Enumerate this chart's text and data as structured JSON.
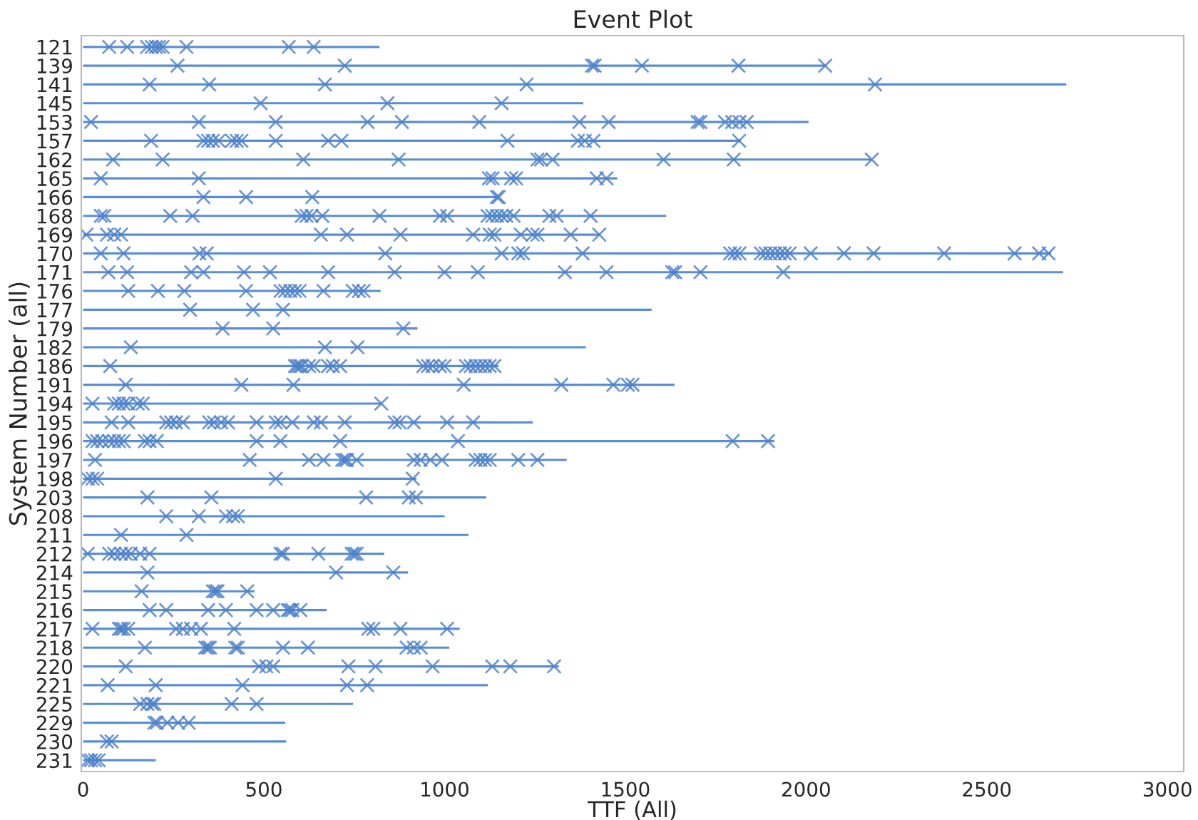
{
  "chart_data": {
    "type": "bar",
    "orientation": "horizontal",
    "title": "Event Plot",
    "xlabel": "TTF (All)",
    "ylabel": "System Number (all)",
    "categories": [
      "121",
      "139",
      "141",
      "145",
      "153",
      "157",
      "162",
      "165",
      "166",
      "168",
      "169",
      "170",
      "171",
      "176",
      "177",
      "179",
      "182",
      "186",
      "191",
      "194",
      "195",
      "196",
      "197",
      "198",
      "203",
      "208",
      "211",
      "212",
      "214",
      "215",
      "216",
      "217",
      "218",
      "220",
      "221",
      "225",
      "229",
      "230",
      "231"
    ],
    "xlim": [
      -5,
      3045
    ],
    "xticks": [
      0,
      500,
      1000,
      1500,
      2000,
      2500,
      3000
    ],
    "grid": false,
    "legend": false,
    "marker": "cross",
    "series": [
      {
        "color": "#5a8ed0",
        "values": [
          820,
          2057,
          2720,
          1384,
          2007,
          1819,
          2182,
          1478,
          1150,
          1613,
          1430,
          2678,
          2711,
          823,
          1573,
          925,
          1391,
          1149,
          1636,
          825,
          1244,
          1912,
          1338,
          922,
          1115,
          1000,
          1066,
          833,
          899,
          474,
          674,
          1042,
          1013,
          1316,
          1120,
          747,
          559,
          562,
          201
        ]
      },
      {
        "type": "scatter",
        "color": "#4a7ec8",
        "x": [
          "121",
          "121",
          "121",
          "121",
          "121",
          "121",
          "121",
          "121",
          "121",
          "121"
        ],
        "values": [
          72,
          122,
          177,
          190,
          201,
          210,
          220,
          286,
          569,
          638
        ]
      },
      {
        "type": "scatter",
        "color": "#4a7ec8",
        "x": [
          "139",
          "139",
          "139",
          "139",
          "139",
          "139",
          "139"
        ],
        "values": [
          261,
          724,
          1408,
          1415,
          1546,
          1813,
          2053
        ]
      },
      {
        "type": "scatter",
        "color": "#4a7ec8",
        "x": [
          "141",
          "141",
          "141",
          "141",
          "141"
        ],
        "values": [
          184,
          349,
          669,
          1227,
          2191
        ]
      },
      {
        "type": "scatter",
        "color": "#4a7ec8",
        "x": [
          "145",
          "145",
          "145"
        ],
        "values": [
          491,
          842,
          1158
        ]
      },
      {
        "type": "scatter",
        "color": "#4a7ec8",
        "x": [
          "153",
          "153",
          "153",
          "153",
          "153",
          "153",
          "153",
          "153",
          "153",
          "153",
          "153",
          "153",
          "153",
          "153"
        ],
        "values": [
          22,
          320,
          533,
          787,
          882,
          1096,
          1373,
          1454,
          1700,
          1708,
          1776,
          1796,
          1816,
          1836
        ]
      },
      {
        "type": "scatter",
        "color": "#4a7ec8",
        "x": [
          "157",
          "157",
          "157",
          "157",
          "157",
          "157",
          "157",
          "157",
          "157",
          "157",
          "157",
          "157",
          "157",
          "157",
          "157",
          "157"
        ],
        "values": [
          188,
          333,
          346,
          359,
          375,
          412,
          425,
          438,
          533,
          678,
          715,
          1174,
          1369,
          1388,
          1412,
          1815
        ]
      },
      {
        "type": "scatter",
        "color": "#4a7ec8",
        "x": [
          "162",
          "162",
          "162",
          "162",
          "162",
          "162",
          "162",
          "162",
          "162",
          "162"
        ],
        "values": [
          83,
          220,
          609,
          873,
          1257,
          1267,
          1299,
          1606,
          1800,
          2182
        ]
      },
      {
        "type": "scatter",
        "color": "#4a7ec8",
        "x": [
          "165",
          "165",
          "165",
          "165",
          "165",
          "165",
          "165",
          "165"
        ],
        "values": [
          49,
          320,
          1123,
          1133,
          1184,
          1198,
          1421,
          1448
        ]
      },
      {
        "type": "scatter",
        "color": "#4a7ec8",
        "x": [
          "166",
          "166",
          "166",
          "166",
          "166"
        ],
        "values": [
          333,
          451,
          634,
          1145,
          1150
        ]
      },
      {
        "type": "scatter",
        "color": "#4a7ec8",
        "x": [
          "168",
          "168",
          "168",
          "168",
          "168",
          "168",
          "168",
          "168",
          "168",
          "168",
          "168",
          "168",
          "168",
          "168",
          "168",
          "168",
          "168",
          "168",
          "168",
          "168"
        ],
        "values": [
          49,
          59,
          241,
          303,
          605,
          618,
          632,
          662,
          820,
          987,
          1007,
          1119,
          1132,
          1145,
          1158,
          1171,
          1191,
          1290,
          1310,
          1404
        ]
      },
      {
        "type": "scatter",
        "color": "#4a7ec8",
        "x": [
          "169",
          "169",
          "169",
          "169",
          "169",
          "169",
          "169",
          "169",
          "169",
          "169",
          "169",
          "169",
          "169",
          "169",
          "169"
        ],
        "values": [
          9,
          66,
          86,
          105,
          658,
          730,
          878,
          1079,
          1125,
          1138,
          1211,
          1244,
          1257,
          1349,
          1428
        ]
      },
      {
        "type": "scatter",
        "color": "#4a7ec8",
        "x": [
          "170",
          "170",
          "170",
          "170",
          "170",
          "170",
          "170",
          "170",
          "170",
          "170",
          "170",
          "170",
          "170",
          "170",
          "170",
          "170",
          "170",
          "170",
          "170",
          "170",
          "170",
          "170",
          "170",
          "170",
          "170",
          "170"
        ],
        "values": [
          49,
          112,
          322,
          342,
          836,
          1158,
          1204,
          1217,
          1382,
          1790,
          1803,
          1816,
          1875,
          1888,
          1901,
          1914,
          1928,
          1941,
          1955,
          2013,
          2105,
          2187,
          2382,
          2577,
          2645,
          2671
        ]
      },
      {
        "type": "scatter",
        "color": "#4a7ec8",
        "x": [
          "171",
          "171",
          "171",
          "171",
          "171",
          "171",
          "171",
          "171",
          "171",
          "171",
          "171",
          "171",
          "171",
          "171",
          "171",
          "171"
        ],
        "values": [
          70,
          122,
          299,
          333,
          445,
          517,
          678,
          862,
          1000,
          1092,
          1333,
          1448,
          1630,
          1638,
          1708,
          1937
        ]
      },
      {
        "type": "scatter",
        "color": "#4a7ec8",
        "x": [
          "176",
          "176",
          "176",
          "176",
          "176",
          "176",
          "176",
          "176",
          "176",
          "176",
          "176",
          "176",
          "176"
        ],
        "values": [
          125,
          207,
          280,
          451,
          546,
          559,
          573,
          586,
          599,
          665,
          746,
          763,
          776
        ]
      },
      {
        "type": "scatter",
        "color": "#4a7ec8",
        "x": [
          "177",
          "177",
          "177"
        ],
        "values": [
          296,
          470,
          553
        ]
      },
      {
        "type": "scatter",
        "color": "#4a7ec8",
        "x": [
          "179",
          "179",
          "179"
        ],
        "values": [
          386,
          526,
          886
        ]
      },
      {
        "type": "scatter",
        "color": "#4a7ec8",
        "x": [
          "182",
          "182",
          "182"
        ],
        "values": [
          132,
          669,
          759
        ]
      },
      {
        "type": "scatter",
        "color": "#4a7ec8",
        "x": [
          "186",
          "186",
          "186",
          "186",
          "186",
          "186",
          "186",
          "186",
          "186",
          "186",
          "186",
          "186",
          "186",
          "186",
          "186",
          "186",
          "186",
          "186",
          "186",
          "186",
          "186",
          "186"
        ],
        "values": [
          75,
          586,
          592,
          599,
          605,
          625,
          638,
          678,
          691,
          711,
          941,
          954,
          967,
          987,
          1000,
          1059,
          1072,
          1086,
          1099,
          1112,
          1125,
          1138
        ]
      },
      {
        "type": "scatter",
        "color": "#4a7ec8",
        "x": [
          "191",
          "191",
          "191",
          "191",
          "191",
          "191",
          "191",
          "191"
        ],
        "values": [
          118,
          438,
          582,
          1053,
          1323,
          1467,
          1507,
          1520
        ]
      },
      {
        "type": "scatter",
        "color": "#4a7ec8",
        "x": [
          "194",
          "194",
          "194",
          "194",
          "194",
          "194",
          "194",
          "194"
        ],
        "values": [
          26,
          86,
          99,
          112,
          125,
          151,
          165,
          825
        ]
      },
      {
        "type": "scatter",
        "color": "#4a7ec8",
        "x": [
          "195",
          "195",
          "195",
          "195",
          "195",
          "195",
          "195",
          "195",
          "195",
          "195",
          "195",
          "195",
          "195",
          "195",
          "195",
          "195",
          "195",
          "195",
          "195",
          "195",
          "195",
          "195"
        ],
        "values": [
          79,
          125,
          230,
          243,
          257,
          276,
          349,
          362,
          382,
          401,
          480,
          533,
          546,
          579,
          638,
          658,
          724,
          862,
          875,
          915,
          1007,
          1079
        ]
      },
      {
        "type": "scatter",
        "color": "#4a7ec8",
        "x": [
          "196",
          "196",
          "196",
          "196",
          "196",
          "196",
          "196",
          "196",
          "196",
          "196",
          "196",
          "196",
          "196",
          "196",
          "196",
          "196"
        ],
        "values": [
          26,
          39,
          53,
          72,
          86,
          99,
          112,
          171,
          184,
          204,
          480,
          546,
          711,
          1037,
          1797,
          1895
        ]
      },
      {
        "type": "scatter",
        "color": "#4a7ec8",
        "x": [
          "197",
          "197",
          "197",
          "197",
          "197",
          "197",
          "197",
          "197",
          "197",
          "197",
          "197",
          "197",
          "197",
          "197",
          "197",
          "197",
          "197",
          "197"
        ],
        "values": [
          33,
          461,
          625,
          665,
          717,
          724,
          730,
          757,
          915,
          934,
          961,
          993,
          1086,
          1099,
          1112,
          1125,
          1204,
          1257
        ]
      },
      {
        "type": "scatter",
        "color": "#4a7ec8",
        "x": [
          "198",
          "198",
          "198",
          "198",
          "198"
        ],
        "values": [
          13,
          26,
          39,
          533,
          912
        ]
      },
      {
        "type": "scatter",
        "color": "#4a7ec8",
        "x": [
          "203",
          "203",
          "203",
          "203",
          "203"
        ],
        "values": [
          178,
          355,
          783,
          901,
          921
        ]
      },
      {
        "type": "scatter",
        "color": "#4a7ec8",
        "x": [
          "208",
          "208",
          "208",
          "208",
          "208"
        ],
        "values": [
          230,
          320,
          395,
          415,
          428
        ]
      },
      {
        "type": "scatter",
        "color": "#4a7ec8",
        "x": [
          "211",
          "211"
        ],
        "values": [
          105,
          286
        ]
      },
      {
        "type": "scatter",
        "color": "#4a7ec8",
        "x": [
          "212",
          "212",
          "212",
          "212",
          "212",
          "212",
          "212",
          "212",
          "212",
          "212",
          "212",
          "212",
          "212",
          "212"
        ],
        "values": [
          13,
          72,
          86,
          105,
          118,
          132,
          158,
          184,
          546,
          553,
          651,
          743,
          750,
          757
        ]
      },
      {
        "type": "scatter",
        "color": "#4a7ec8",
        "x": [
          "214",
          "214",
          "214"
        ],
        "values": [
          178,
          700,
          858
        ]
      },
      {
        "type": "scatter",
        "color": "#4a7ec8",
        "x": [
          "215",
          "215",
          "215",
          "215",
          "215"
        ],
        "values": [
          162,
          359,
          366,
          372,
          454
        ]
      },
      {
        "type": "scatter",
        "color": "#4a7ec8",
        "x": [
          "216",
          "216",
          "216",
          "216",
          "216",
          "216",
          "216",
          "216",
          "216",
          "216"
        ],
        "values": [
          184,
          230,
          346,
          395,
          480,
          526,
          566,
          572,
          579,
          601
        ]
      },
      {
        "type": "scatter",
        "color": "#4a7ec8",
        "x": [
          "217",
          "217",
          "217",
          "217",
          "217",
          "217",
          "217",
          "217",
          "217",
          "217",
          "217",
          "217",
          "217",
          "217"
        ],
        "values": [
          26,
          99,
          105,
          112,
          125,
          257,
          276,
          299,
          326,
          418,
          789,
          803,
          878,
          1007
        ]
      },
      {
        "type": "scatter",
        "color": "#4a7ec8",
        "x": [
          "218",
          "218",
          "218",
          "218",
          "218",
          "218",
          "218",
          "218",
          "218",
          "218",
          "218"
        ],
        "values": [
          171,
          338,
          345,
          351,
          421,
          428,
          553,
          622,
          895,
          915,
          934
        ]
      },
      {
        "type": "scatter",
        "color": "#4a7ec8",
        "x": [
          "220",
          "220",
          "220",
          "220",
          "220",
          "220",
          "220",
          "220",
          "220",
          "220"
        ],
        "values": [
          118,
          487,
          507,
          526,
          734,
          809,
          967,
          1132,
          1182,
          1303
        ]
      },
      {
        "type": "scatter",
        "color": "#4a7ec8",
        "x": [
          "221",
          "221",
          "221",
          "221",
          "221"
        ],
        "values": [
          68,
          201,
          441,
          730,
          786
        ]
      },
      {
        "type": "scatter",
        "color": "#4a7ec8",
        "x": [
          "225",
          "225",
          "225",
          "225",
          "225",
          "225"
        ],
        "values": [
          158,
          178,
          191,
          197,
          411,
          480
        ]
      },
      {
        "type": "scatter",
        "color": "#4a7ec8",
        "x": [
          "229",
          "229",
          "229",
          "229",
          "229"
        ],
        "values": [
          197,
          204,
          233,
          263,
          292
        ]
      },
      {
        "type": "scatter",
        "color": "#4a7ec8",
        "x": [
          "230",
          "230"
        ],
        "values": [
          66,
          79
        ]
      },
      {
        "type": "scatter",
        "color": "#4a7ec8",
        "x": [
          "231",
          "231",
          "231",
          "231"
        ],
        "values": [
          13,
          22,
          33,
          43
        ]
      }
    ]
  }
}
